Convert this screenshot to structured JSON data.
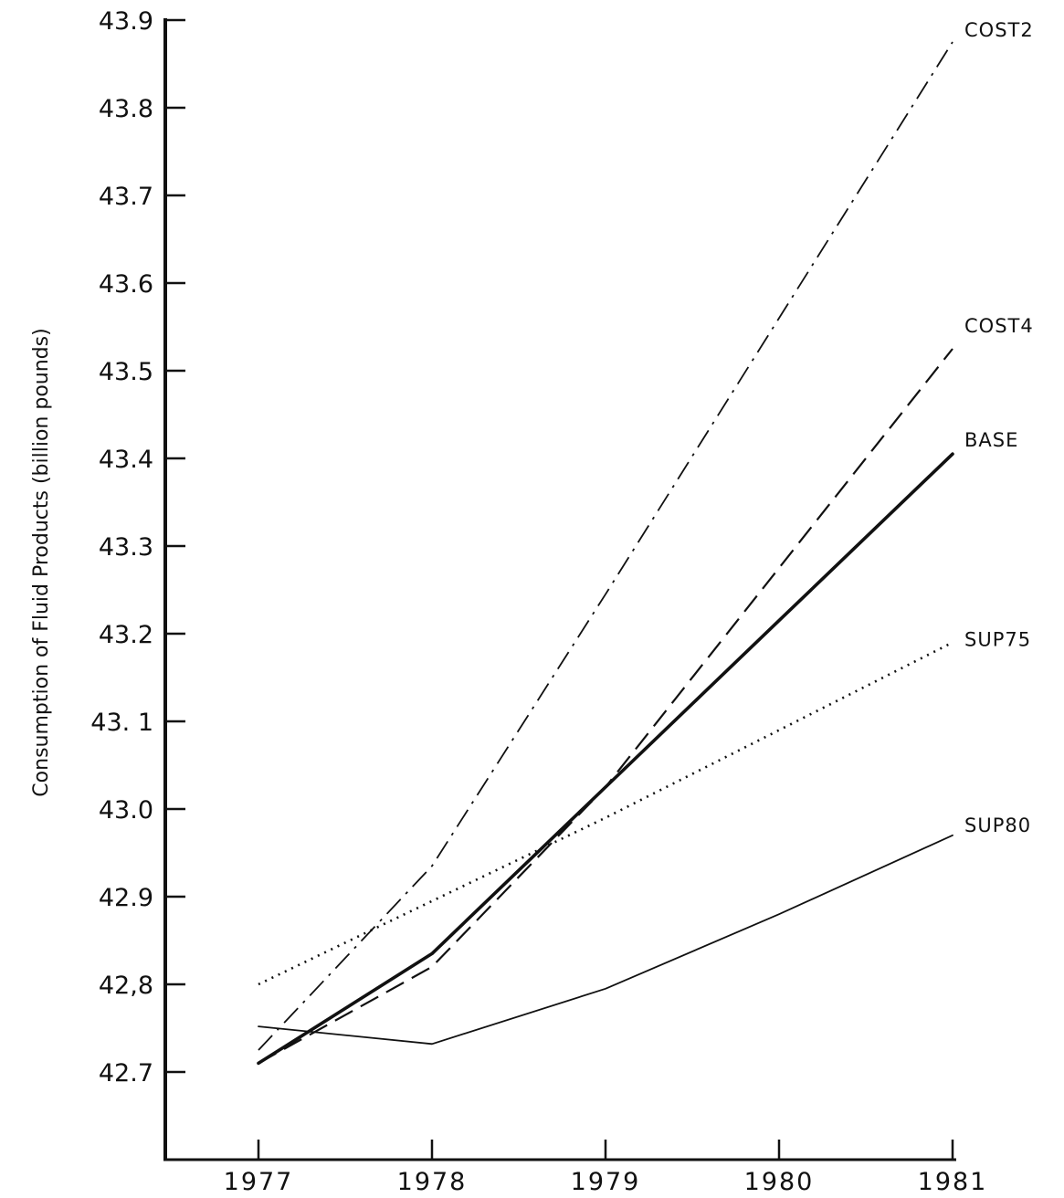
{
  "chart_data": {
    "type": "line",
    "title": "",
    "xlabel": "",
    "ylabel": "Consumption of Fluid Products (billion pounds)",
    "x": [
      1977,
      1978,
      1979,
      1980,
      1981
    ],
    "x_tick_labels": [
      "1977",
      "1978",
      "1979",
      "1980",
      "1981"
    ],
    "y_ticks": [
      42.7,
      42.8,
      42.9,
      43.0,
      43.1,
      43.2,
      43.3,
      43.4,
      43.5,
      43.6,
      43.7,
      43.8,
      43.9
    ],
    "y_tick_labels": [
      "42.7",
      "42,8",
      "42.9",
      "43.0",
      "43. 1",
      "43.2",
      "43.3",
      "43.4",
      "43.5",
      "43.6",
      "43.7",
      "43.8",
      "43.9"
    ],
    "xlim": [
      1976.5,
      1981.0
    ],
    "ylim": [
      42.6,
      43.9
    ],
    "grid": false,
    "legend": "labels at line ends (right)",
    "series": [
      {
        "name": "COST2",
        "style": "dashdot",
        "values": [
          42.725,
          42.935,
          43.245,
          43.56,
          43.875
        ]
      },
      {
        "name": "COST4",
        "style": "dashed",
        "values": [
          42.71,
          42.82,
          43.025,
          43.275,
          43.525
        ]
      },
      {
        "name": "BASE",
        "style": "solid-bold",
        "values": [
          42.71,
          42.835,
          43.025,
          43.215,
          43.405
        ]
      },
      {
        "name": "SUP75",
        "style": "dotted",
        "values": [
          42.8,
          42.895,
          42.99,
          43.09,
          43.19
        ]
      },
      {
        "name": "SUP80",
        "style": "solid-thin",
        "values": [
          42.752,
          42.732,
          42.795,
          42.88,
          42.97
        ]
      }
    ]
  }
}
